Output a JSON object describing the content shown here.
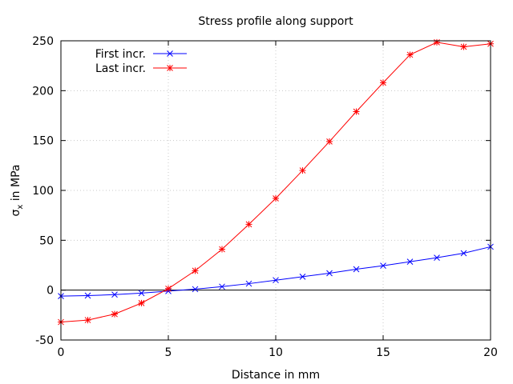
{
  "chart_data": {
    "type": "line",
    "title": "Stress profile along support",
    "xlabel": "Distance in mm",
    "ylabel_main": "σ",
    "ylabel_sub": "x",
    "ylabel_rest": " in MPa",
    "xlim": [
      0,
      20
    ],
    "ylim": [
      -50,
      250
    ],
    "xticks": [
      0,
      5,
      10,
      15,
      20
    ],
    "yticks": [
      -50,
      0,
      50,
      100,
      150,
      200,
      250
    ],
    "grid": true,
    "zero_line": true,
    "legend_position": "top-left",
    "x": [
      0,
      1.25,
      2.5,
      3.75,
      5,
      6.25,
      7.5,
      8.75,
      10,
      11.25,
      12.5,
      13.75,
      15,
      16.25,
      17.5,
      18.75,
      20
    ],
    "series": [
      {
        "name": "First incr.",
        "color": "#0000ff",
        "marker": "x",
        "values": [
          -6,
          -5.5,
          -4.5,
          -3,
          -1,
          1,
          3.5,
          6.5,
          10,
          13.5,
          17,
          21,
          24.5,
          28.5,
          32.5,
          37,
          43.5
        ]
      },
      {
        "name": "Last incr.",
        "color": "#ff0000",
        "marker": "star",
        "values": [
          -32,
          -30,
          -24,
          -13,
          1.5,
          19.5,
          41,
          66,
          92,
          120,
          149,
          179,
          208,
          236,
          248.5,
          244,
          247
        ]
      }
    ]
  }
}
